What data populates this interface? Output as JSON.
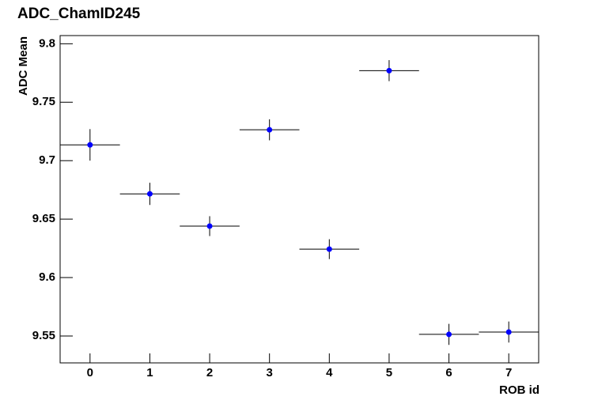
{
  "chart_data": {
    "type": "scatter",
    "title": "ADC_ChamID245",
    "x_label": "ROB id",
    "y_label": "ADC Mean",
    "x": [
      0,
      1,
      2,
      3,
      4,
      5,
      6,
      7
    ],
    "xerr": [
      0.5,
      0.5,
      0.5,
      0.5,
      0.5,
      0.5,
      0.5,
      0.5
    ],
    "values": [
      9.7135,
      9.6716,
      9.644,
      9.7264,
      9.6243,
      9.777,
      9.5514,
      9.5534
    ],
    "yerr": [
      0.0135,
      0.0095,
      0.0085,
      0.009,
      0.0085,
      0.009,
      0.009,
      0.009
    ],
    "color": "#0000ff",
    "xlim": [
      -0.5,
      7.5
    ],
    "xticks": [
      0,
      1,
      2,
      3,
      4,
      5,
      6,
      7
    ],
    "ylim": [
      9.527,
      9.807
    ],
    "yticks": [
      9.55,
      9.6,
      9.65,
      9.7,
      9.75,
      9.8
    ]
  }
}
